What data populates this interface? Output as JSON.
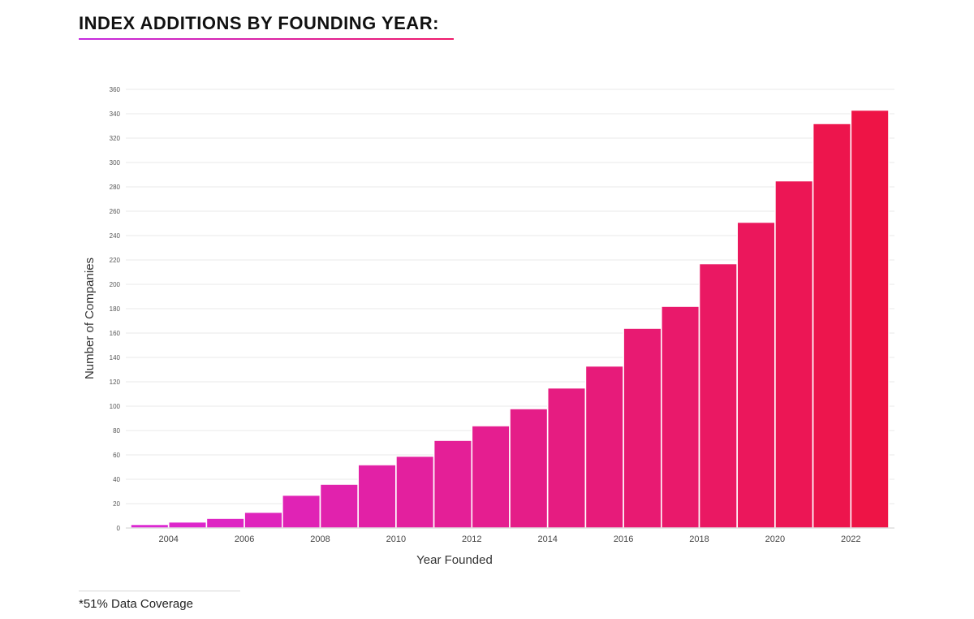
{
  "page": {
    "title": "INDEX ADDITIONS BY FOUNDING YEAR:",
    "title_rule_color": "#e8179a",
    "footnote": "*51% Data Coverage"
  },
  "chart_data": {
    "type": "bar",
    "xlabel": "Year Founded",
    "ylabel": "Number of Companies",
    "ylim": [
      0,
      360
    ],
    "xlim": [
      2003,
      2023
    ],
    "grid": true,
    "yticks": [
      0,
      20,
      40,
      60,
      80,
      100,
      120,
      140,
      160,
      180,
      200,
      220,
      240,
      260,
      280,
      300,
      320,
      340,
      360
    ],
    "xticks": [
      2004,
      2006,
      2008,
      2010,
      2012,
      2014,
      2016,
      2018,
      2020,
      2022
    ],
    "categories": [
      "2003",
      "2004",
      "2005",
      "2006",
      "2007",
      "2008",
      "2009",
      "2010",
      "2011",
      "2012",
      "2013",
      "2014",
      "2015",
      "2016",
      "2017",
      "2018",
      "2019",
      "2020",
      "2021",
      "2022"
    ],
    "values": [
      3,
      5,
      8,
      13,
      27,
      36,
      52,
      59,
      72,
      84,
      98,
      115,
      133,
      164,
      182,
      217,
      251,
      285,
      332,
      343
    ],
    "color_start": "#dc27d2",
    "color_end": "#ee1446"
  }
}
